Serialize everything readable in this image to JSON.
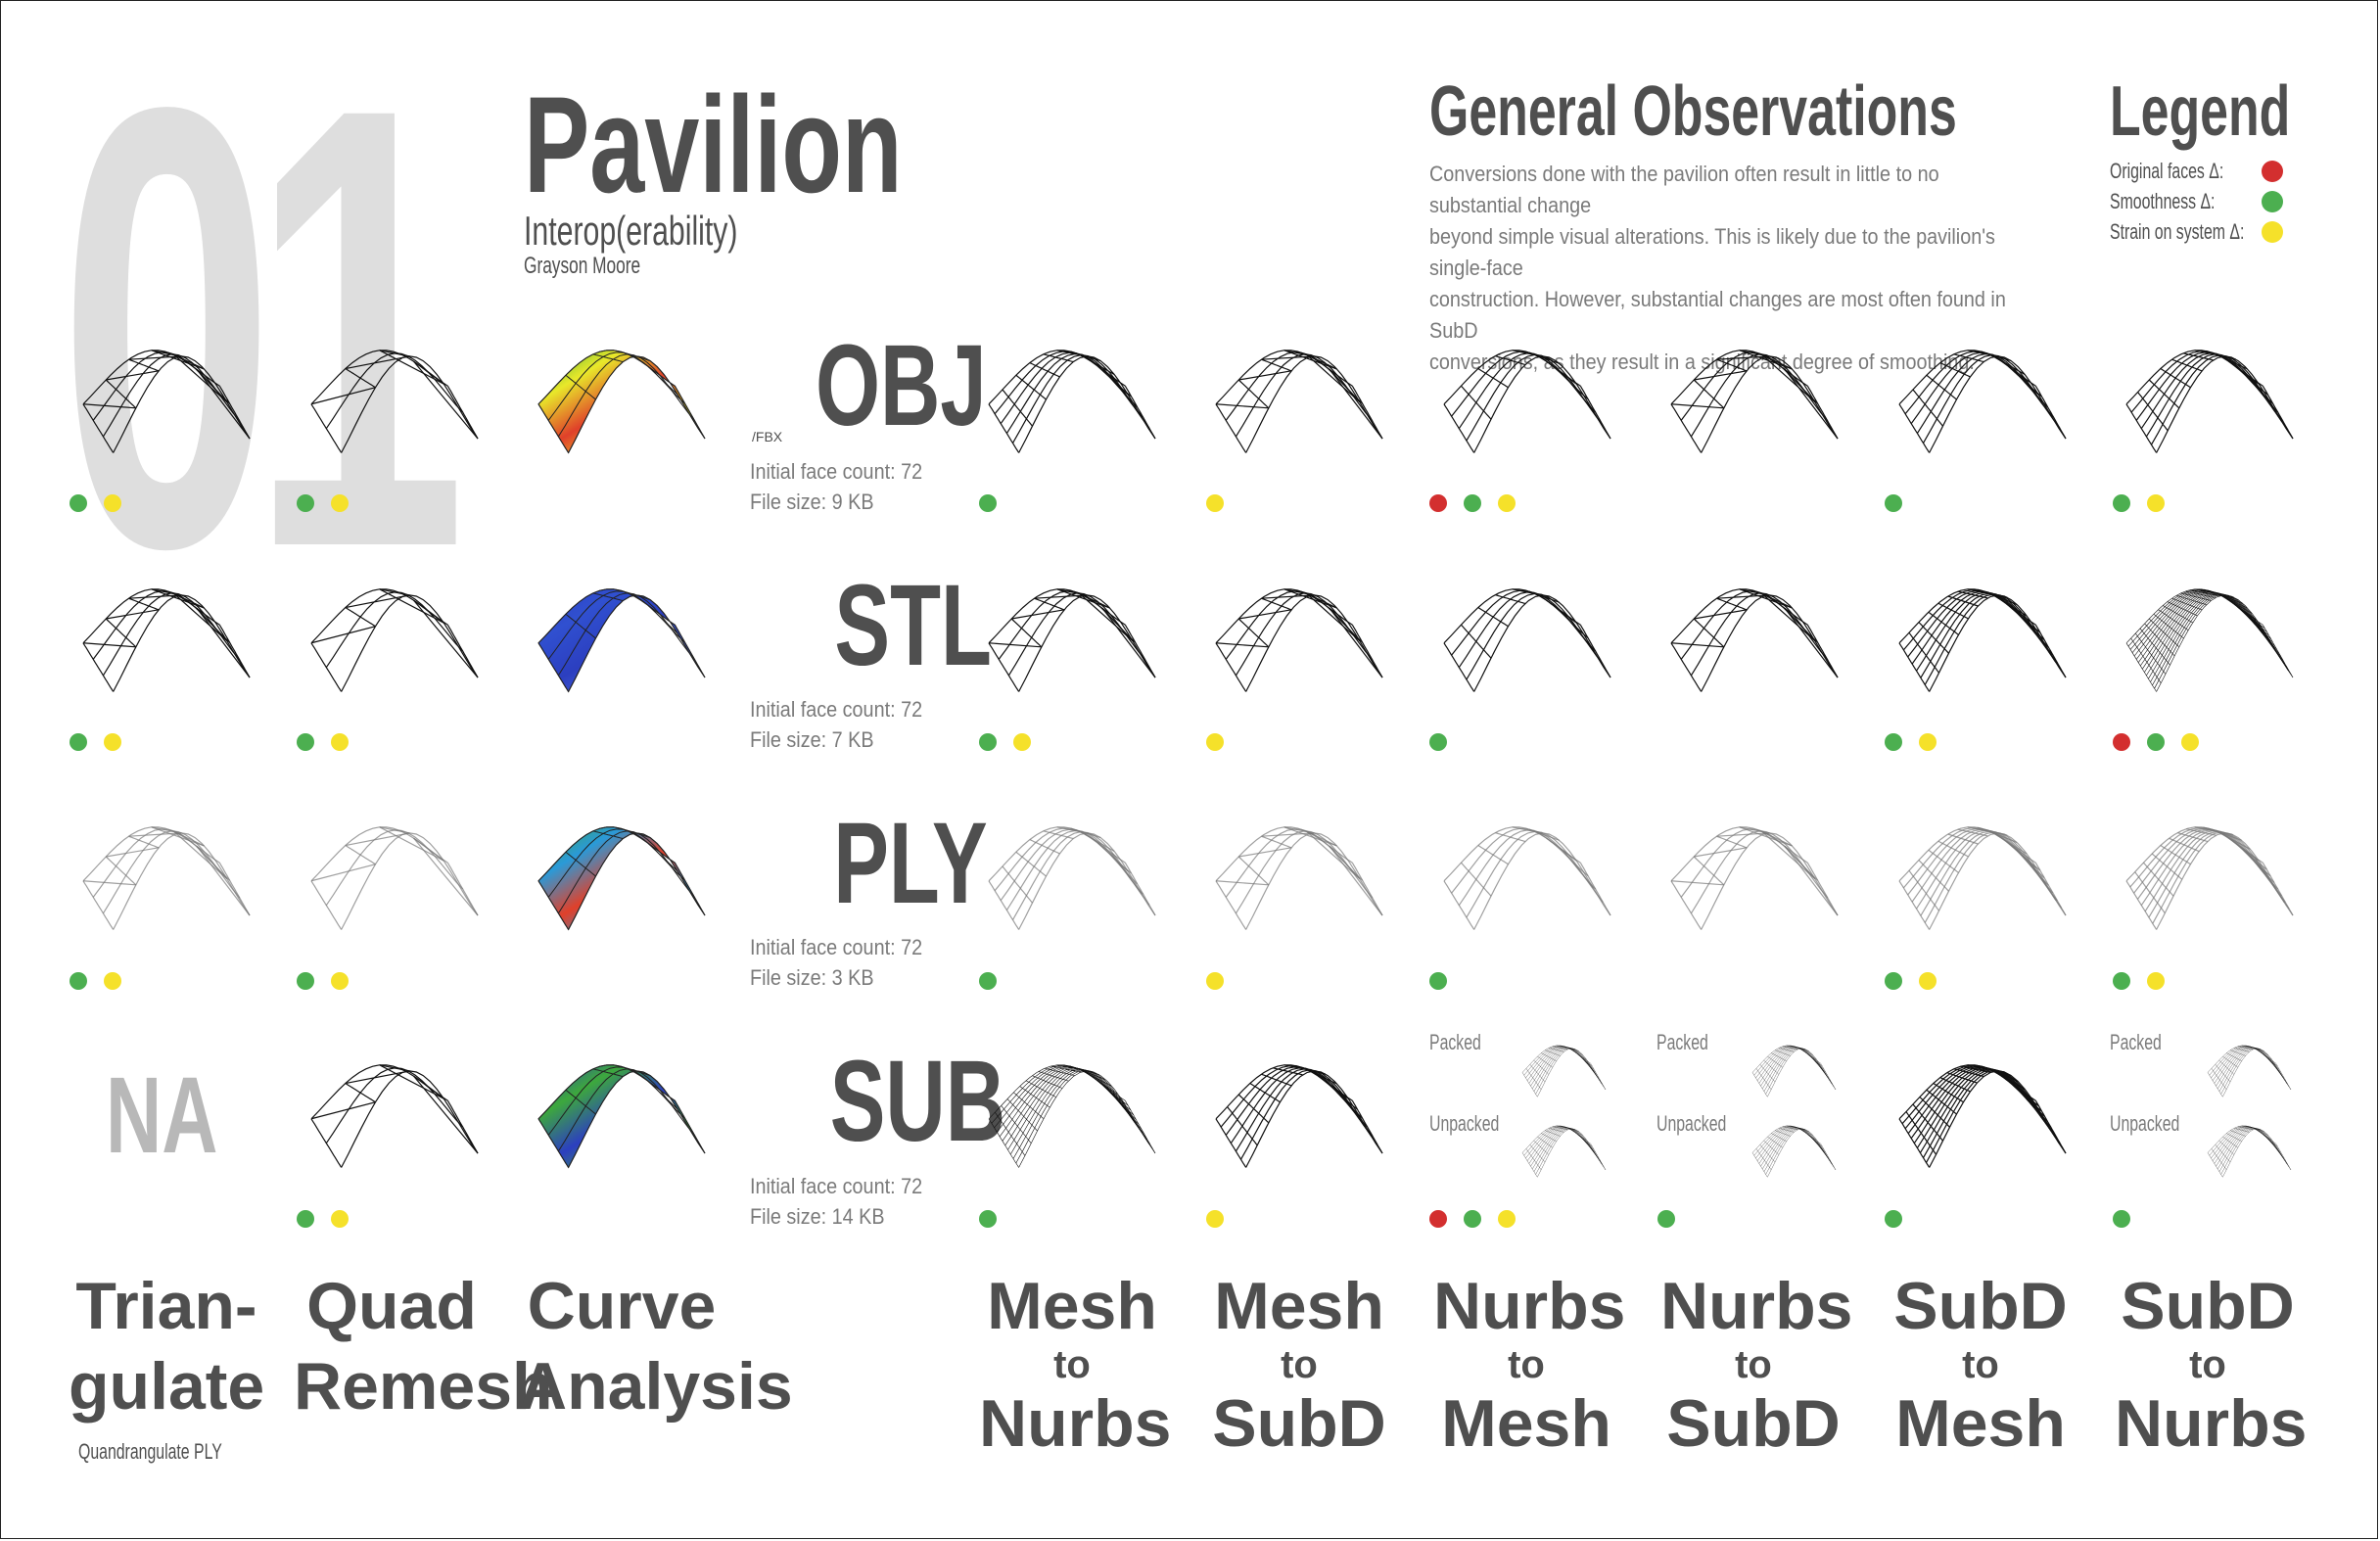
{
  "header": {
    "number": "01",
    "title": "Pavilion",
    "subtitle": "Interop(erability)",
    "author": "Grayson Moore"
  },
  "observations": {
    "heading": "General Observations",
    "lines": [
      "Conversions done with the pavilion often result in little to no substantial change",
      "beyond simple visual alterations. This is likely due to the pavilion's single-face",
      "construction. However, substantial changes are most often found in SubD",
      "conversions, as they result in a significant degree of smoothing."
    ]
  },
  "legend": {
    "heading": "Legend",
    "items": [
      {
        "label": "Original faces Δ:",
        "color": "#d32f2f"
      },
      {
        "label": "Smoothness Δ:",
        "color": "#4caf50"
      },
      {
        "label": "Strain on system Δ:",
        "color": "#f5e12a"
      }
    ]
  },
  "colors": {
    "red": "#d32f2f",
    "green": "#4caf50",
    "yellow": "#f5e12a"
  },
  "formats": [
    {
      "name": "OBJ",
      "sub": "/FBX",
      "face_count": "Initial face count: 72",
      "file_size": "File size: 9 KB"
    },
    {
      "name": "STL",
      "sub": "",
      "face_count": "Initial face count: 72",
      "file_size": "File size: 7 KB"
    },
    {
      "name": "PLY",
      "sub": "",
      "face_count": "Initial face count: 72",
      "file_size": "File size: 3 KB"
    },
    {
      "name": "SUB",
      "sub": "",
      "face_count": "Initial face count: 72",
      "file_size": "File size: 14 KB"
    }
  ],
  "na_label": "NA",
  "packed_labels": {
    "packed": "Packed",
    "unpacked": "Unpacked"
  },
  "columns": [
    {
      "line1": "Trian-",
      "line2": "",
      "line3": "gulate",
      "note": "Quandrangulate PLY"
    },
    {
      "line1": "Quad",
      "line2": "",
      "line3": "Remesh",
      "note": ""
    },
    {
      "line1": "Curve",
      "line2": "",
      "line3": "Analysis",
      "note": ""
    },
    {
      "line1": "Mesh",
      "line2": "to",
      "line3": "Nurbs",
      "note": ""
    },
    {
      "line1": "Mesh",
      "line2": "to",
      "line3": "SubD",
      "note": ""
    },
    {
      "line1": "Nurbs",
      "line2": "to",
      "line3": "Mesh",
      "note": ""
    },
    {
      "line1": "Nurbs",
      "line2": "to",
      "line3": "SubD",
      "note": ""
    },
    {
      "line1": "SubD",
      "line2": "to",
      "line3": "Mesh",
      "note": ""
    },
    {
      "line1": "SubD",
      "line2": "to",
      "line3": "Nurbs",
      "note": ""
    }
  ],
  "indicators": [
    [
      [
        "green",
        "yellow"
      ],
      [
        "green",
        "yellow"
      ],
      [],
      [
        "green"
      ],
      [
        "yellow"
      ],
      [
        "red",
        "green",
        "yellow"
      ],
      [],
      [
        "green"
      ],
      [
        "green",
        "yellow"
      ]
    ],
    [
      [
        "green",
        "yellow"
      ],
      [
        "green",
        "yellow"
      ],
      [],
      [
        "green",
        "yellow"
      ],
      [
        "yellow"
      ],
      [
        "green"
      ],
      [],
      [
        "green",
        "yellow"
      ],
      [
        "red",
        "green",
        "yellow"
      ]
    ],
    [
      [
        "green",
        "yellow"
      ],
      [
        "green",
        "yellow"
      ],
      [],
      [
        "green"
      ],
      [
        "yellow"
      ],
      [
        "green"
      ],
      [],
      [
        "green",
        "yellow"
      ],
      [
        "green",
        "yellow"
      ]
    ],
    [
      [],
      [
        "green",
        "yellow"
      ],
      [],
      [
        "green"
      ],
      [
        "yellow"
      ],
      [
        "red",
        "green",
        "yellow"
      ],
      [
        "green"
      ],
      [
        "green"
      ],
      [
        "green"
      ]
    ]
  ]
}
